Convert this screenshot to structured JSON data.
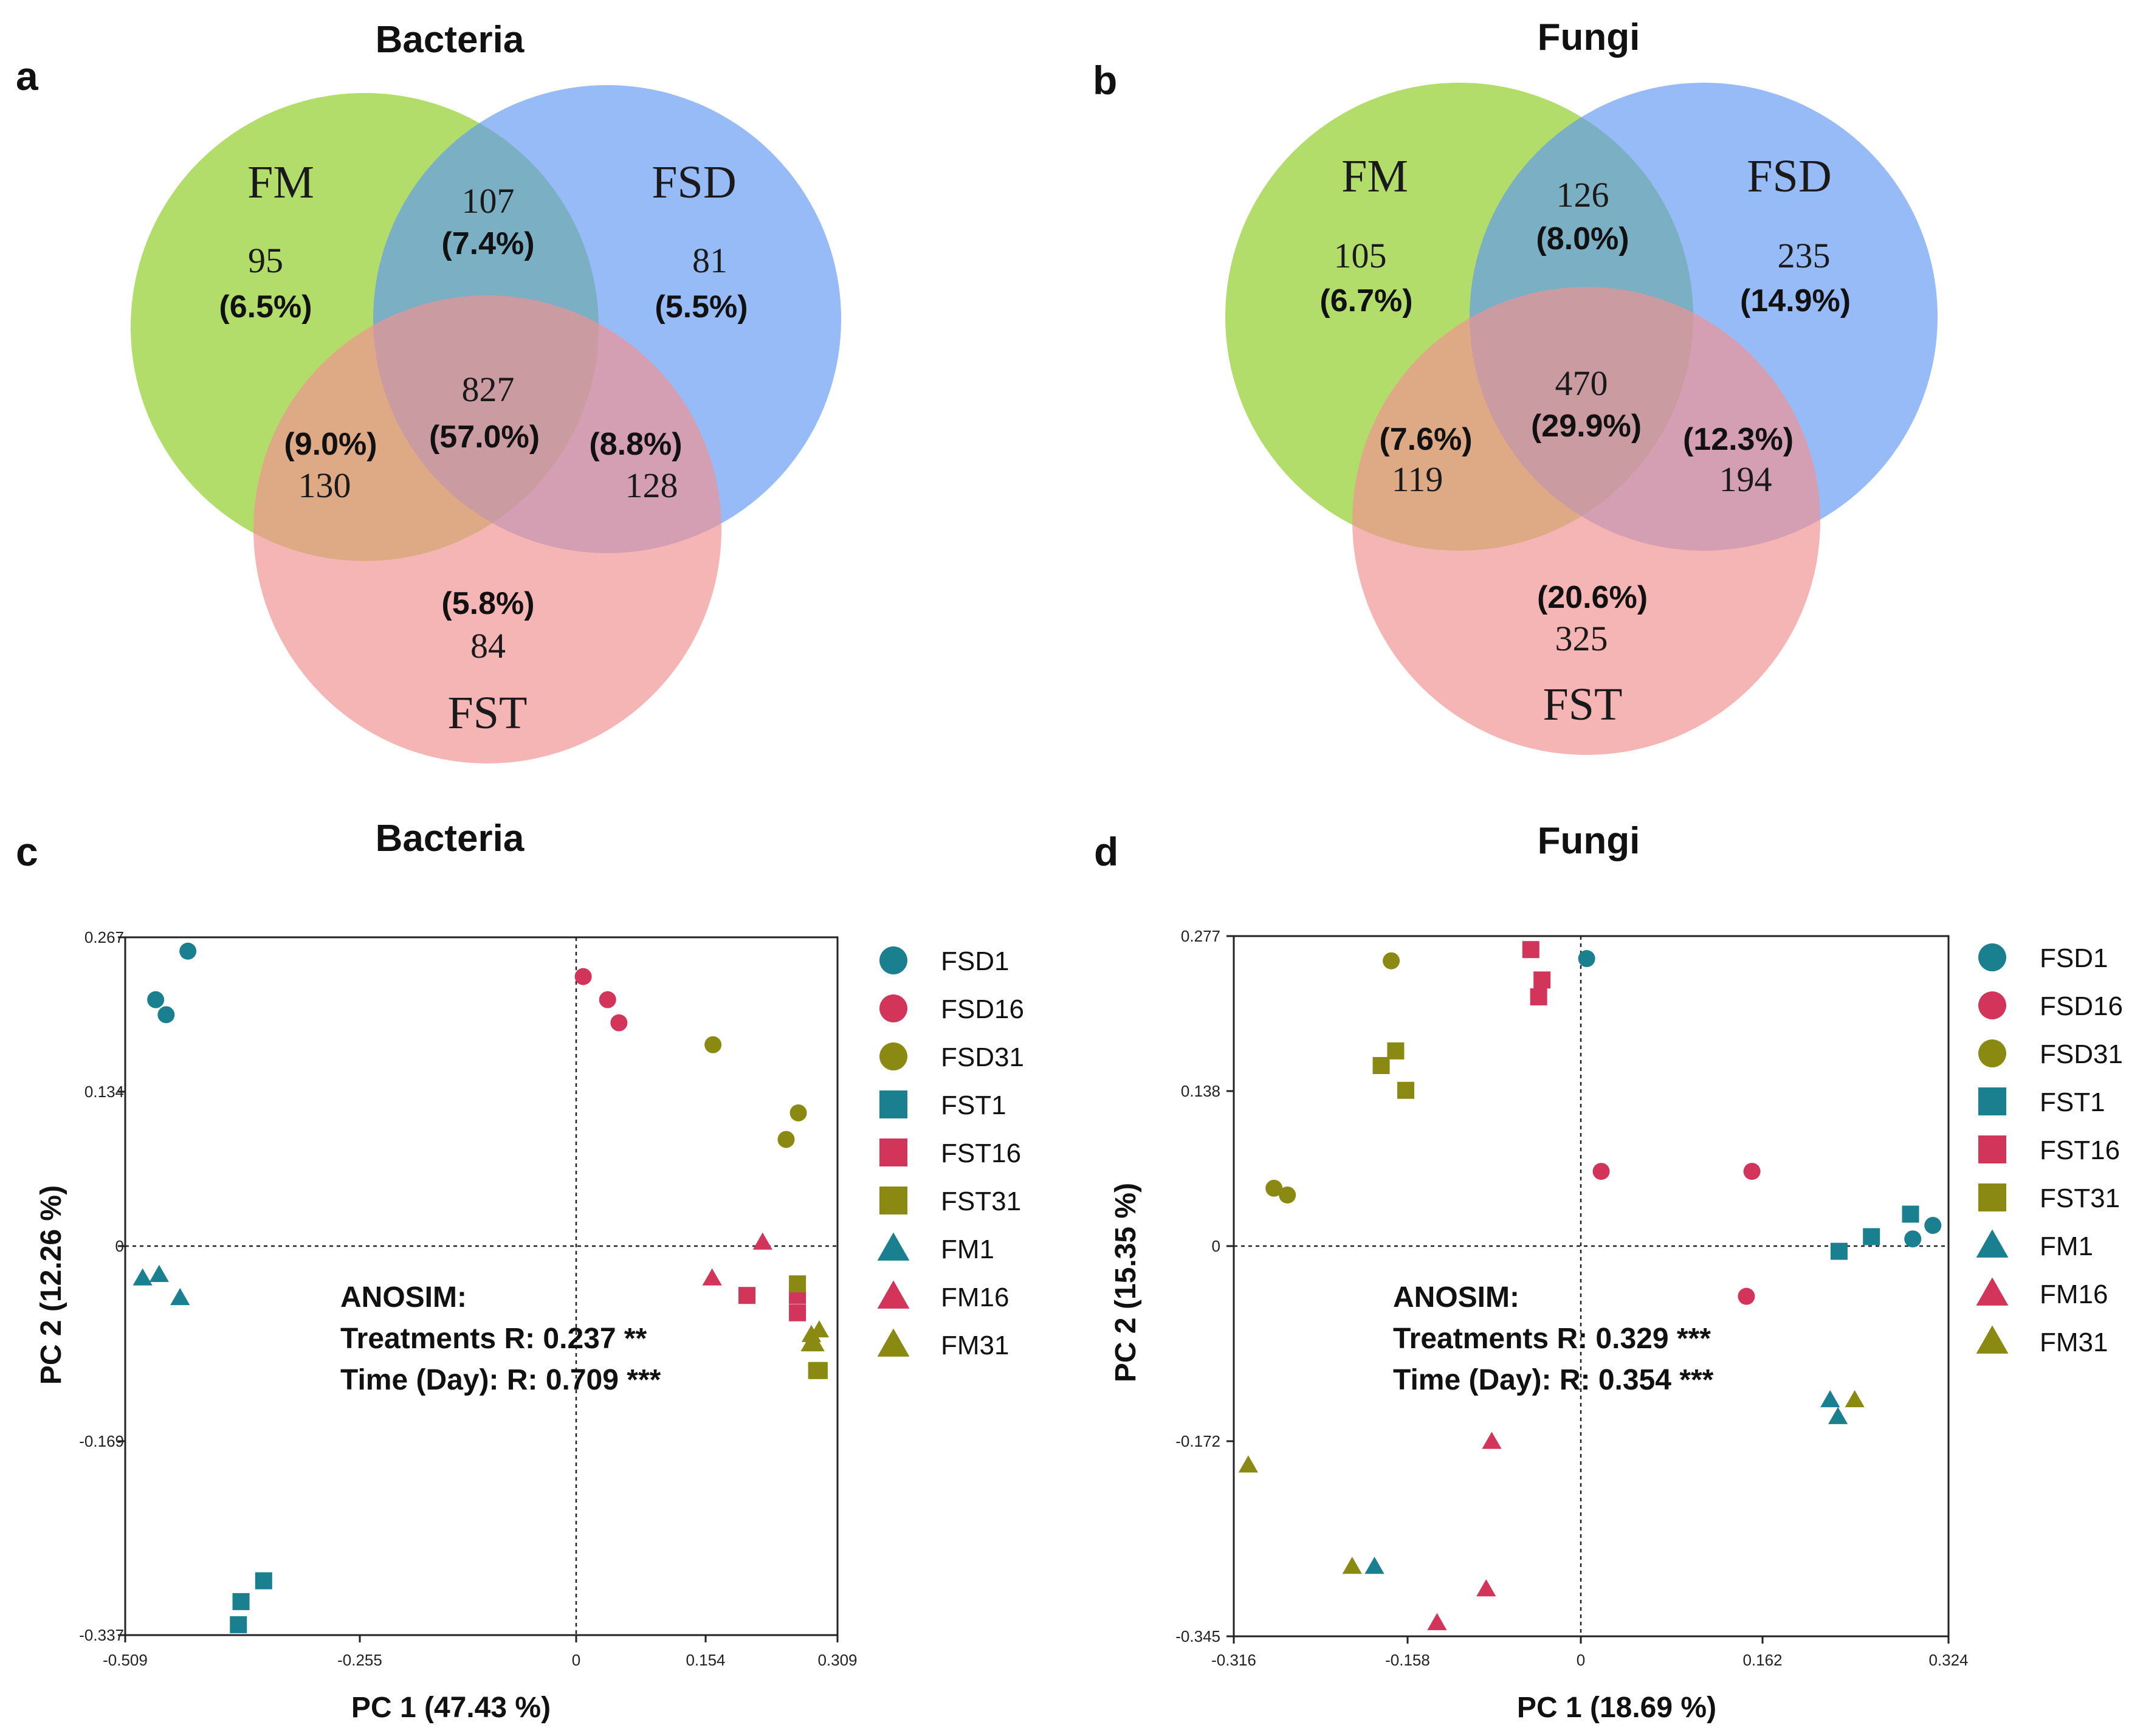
{
  "panels": {
    "a": {
      "label": "a",
      "title": "Bacteria"
    },
    "b": {
      "label": "b",
      "title": "Fungi"
    },
    "c": {
      "label": "c",
      "title": "Bacteria"
    },
    "d": {
      "label": "d",
      "title": "Fungi"
    }
  },
  "colors": {
    "FM": "#9ad13a",
    "FSD": "#5d97f2",
    "FST": "#f29292",
    "teal": "#1a7f8e",
    "crimson": "#d2345a",
    "olive": "#8a8a12"
  },
  "venn_a": {
    "sets": [
      "FM",
      "FSD",
      "FST"
    ],
    "regions": {
      "FM_only": {
        "count": "95",
        "pct": "(6.5%)"
      },
      "FSD_only": {
        "count": "81",
        "pct": "(5.5%)"
      },
      "FST_only": {
        "count": "84",
        "pct": "(5.8%)"
      },
      "FM_FSD": {
        "count": "107",
        "pct": "(7.4%)"
      },
      "FM_FST": {
        "count": "130",
        "pct": "(9.0%)"
      },
      "FSD_FST": {
        "count": "128",
        "pct": "(8.8%)"
      },
      "all": {
        "count": "827",
        "pct": "(57.0%)"
      }
    }
  },
  "venn_b": {
    "sets": [
      "FM",
      "FSD",
      "FST"
    ],
    "regions": {
      "FM_only": {
        "count": "105",
        "pct": "(6.7%)"
      },
      "FSD_only": {
        "count": "235",
        "pct": "(14.9%)"
      },
      "FST_only": {
        "count": "325",
        "pct": "(20.6%)"
      },
      "FM_FSD": {
        "count": "126",
        "pct": "(8.0%)"
      },
      "FM_FST": {
        "count": "119",
        "pct": "(7.6%)"
      },
      "FSD_FST": {
        "count": "194",
        "pct": "(12.3%)"
      },
      "all": {
        "count": "470",
        "pct": "(29.9%)"
      }
    }
  },
  "legend_entries": [
    {
      "name": "FSD1",
      "shape": "circle",
      "color": "teal"
    },
    {
      "name": "FSD16",
      "shape": "circle",
      "color": "crimson"
    },
    {
      "name": "FSD31",
      "shape": "circle",
      "color": "olive"
    },
    {
      "name": "FST1",
      "shape": "square",
      "color": "teal"
    },
    {
      "name": "FST16",
      "shape": "square",
      "color": "crimson"
    },
    {
      "name": "FST31",
      "shape": "square",
      "color": "olive"
    },
    {
      "name": "FM1",
      "shape": "triangle",
      "color": "teal"
    },
    {
      "name": "FM16",
      "shape": "triangle",
      "color": "crimson"
    },
    {
      "name": "FM31",
      "shape": "triangle",
      "color": "olive"
    }
  ],
  "chart_data": [
    {
      "type": "scatter",
      "title": "Bacteria",
      "xlabel": "PC 1 (47.43 %)",
      "ylabel": "PC 2 (12.26 %)",
      "xlim": [
        -0.509,
        0.309
      ],
      "ylim": [
        -0.337,
        0.267
      ],
      "xticks": [
        "-0.509",
        "-0.255",
        "0",
        "0.154",
        "0.309"
      ],
      "yticks": [
        "0.267",
        "0.134",
        "0",
        "-0.169",
        "-0.337"
      ],
      "annotation": [
        "ANOSIM:",
        "Treatments R: 0.237 **",
        "Time (Day): R: 0.709 ***"
      ],
      "series": [
        {
          "name": "FSD1",
          "points": [
            [
              -0.437,
              0.255
            ],
            [
              -0.474,
              0.213
            ],
            [
              -0.462,
              0.2
            ]
          ]
        },
        {
          "name": "FSD16",
          "points": [
            [
              0.017,
              0.233
            ],
            [
              0.045,
              0.213
            ],
            [
              0.058,
              0.193
            ]
          ]
        },
        {
          "name": "FSD31",
          "points": [
            [
              0.166,
              0.174
            ],
            [
              0.264,
              0.115
            ],
            [
              0.25,
              0.092
            ]
          ]
        },
        {
          "name": "FST1",
          "points": [
            [
              -0.379,
              -0.328
            ],
            [
              -0.376,
              -0.308
            ],
            [
              -0.35,
              -0.29
            ]
          ]
        },
        {
          "name": "FST16",
          "points": [
            [
              0.205,
              -0.043
            ],
            [
              0.263,
              -0.043
            ],
            [
              0.263,
              -0.058
            ]
          ]
        },
        {
          "name": "FST31",
          "points": [
            [
              0.263,
              -0.033
            ],
            [
              0.285,
              -0.108
            ],
            [
              0.288,
              -0.108
            ]
          ]
        },
        {
          "name": "FM1",
          "points": [
            [
              -0.489,
              -0.028
            ],
            [
              -0.47,
              -0.025
            ],
            [
              -0.446,
              -0.045
            ]
          ]
        },
        {
          "name": "FM16",
          "points": [
            [
              0.165,
              -0.028
            ],
            [
              0.223,
              0.003
            ]
          ]
        },
        {
          "name": "FM31",
          "points": [
            [
              0.279,
              -0.077
            ],
            [
              0.288,
              -0.073
            ],
            [
              0.283,
              -0.085
            ],
            [
              0.278,
              -0.085
            ]
          ]
        }
      ]
    },
    {
      "type": "scatter",
      "title": "Fungi",
      "xlabel": "PC 1 (18.69 %)",
      "ylabel": "PC 2 (15.35 %)",
      "xlim": [
        -0.316,
        0.324
      ],
      "ylim": [
        -0.345,
        0.277
      ],
      "xticks": [
        "-0.316",
        "-0.158",
        "0",
        "0.162",
        "0.324"
      ],
      "yticks": [
        "0.277",
        "0.138",
        "0",
        "-0.172",
        "-0.345"
      ],
      "annotation": [
        "ANOSIM:",
        "Treatments R: 0.329 ***",
        "Time (Day): R: 0.354 ***"
      ],
      "series": [
        {
          "name": "FSD1",
          "points": [
            [
              0.0,
              0.257
            ],
            [
              0.292,
              0.008
            ],
            [
              0.31,
              0.02
            ]
          ]
        },
        {
          "name": "FSD16",
          "points": [
            [
              0.013,
              0.068
            ],
            [
              0.148,
              0.068
            ],
            [
              0.143,
              -0.043
            ]
          ]
        },
        {
          "name": "FSD31",
          "points": [
            [
              -0.175,
              0.255
            ],
            [
              -0.28,
              0.053
            ],
            [
              -0.268,
              0.047
            ]
          ]
        },
        {
          "name": "FST1",
          "points": [
            [
              0.226,
              -0.003
            ],
            [
              0.255,
              0.01
            ],
            [
              0.29,
              0.03
            ]
          ]
        },
        {
          "name": "FST16",
          "points": [
            [
              -0.05,
              0.265
            ],
            [
              -0.04,
              0.238
            ],
            [
              -0.043,
              0.223
            ]
          ]
        },
        {
          "name": "FST31",
          "points": [
            [
              -0.184,
              0.162
            ],
            [
              -0.171,
              0.175
            ],
            [
              -0.162,
              0.14
            ]
          ]
        },
        {
          "name": "FM1",
          "points": [
            [
              0.218,
              -0.135
            ],
            [
              0.225,
              -0.15
            ],
            [
              -0.19,
              -0.283
            ]
          ]
        },
        {
          "name": "FM16",
          "points": [
            [
              -0.085,
              -0.172
            ],
            [
              -0.09,
              -0.303
            ],
            [
              -0.134,
              -0.333
            ]
          ]
        },
        {
          "name": "FM31",
          "points": [
            [
              0.24,
              -0.135
            ],
            [
              -0.303,
              -0.193
            ],
            [
              -0.21,
              -0.283
            ]
          ]
        }
      ]
    }
  ]
}
